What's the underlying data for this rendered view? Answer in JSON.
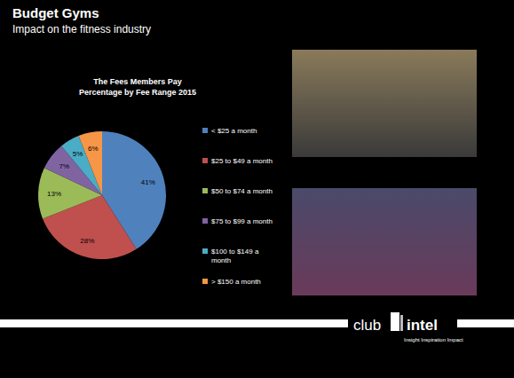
{
  "header": {
    "title": "Budget Gyms",
    "subtitle": "Impact on the fitness industry"
  },
  "chart_data": {
    "type": "pie",
    "title": "The Fees Members Pay",
    "subtitle": "Percentage by Fee Range 2015",
    "categories": [
      "< $25 a month",
      "$25 to $49 a month",
      "$50 to $74 a month",
      "$75 to $99 a month",
      "$100 to $149 a month",
      "> $150 a month"
    ],
    "values": [
      41,
      28,
      13,
      7,
      5,
      6
    ],
    "value_labels": [
      "41%",
      "28%",
      "13%",
      "7%",
      "5%",
      "6%"
    ],
    "colors": [
      "#4f81bd",
      "#c0504d",
      "#9bbb59",
      "#8064a2",
      "#4bacc6",
      "#f79646"
    ],
    "data_labels": true,
    "legend": "right"
  },
  "footer": {
    "logo_left": "club",
    "logo_right": "intel",
    "tagline": "Insight Inspiration Impact"
  }
}
